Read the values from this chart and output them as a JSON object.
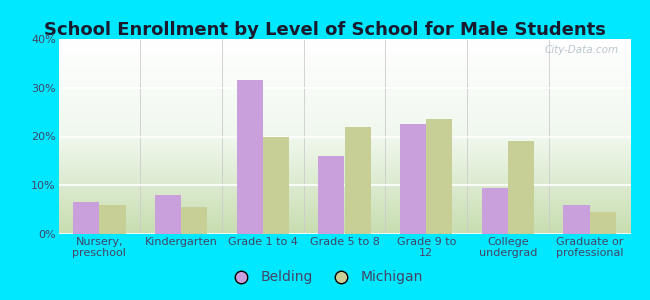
{
  "title": "School Enrollment by Level of School for Male Students",
  "categories": [
    "Nursery,\npreschool",
    "Kindergarten",
    "Grade 1 to 4",
    "Grade 5 to 8",
    "Grade 9 to\n12",
    "College\nundergrad",
    "Graduate or\nprofessional"
  ],
  "belding": [
    6.5,
    8.0,
    31.5,
    16.0,
    22.5,
    9.5,
    6.0
  ],
  "michigan": [
    6.0,
    5.5,
    20.0,
    22.0,
    23.5,
    19.0,
    4.5
  ],
  "belding_color": "#c9a0dc",
  "michigan_color": "#c8cf96",
  "background_outer": "#00e8ff",
  "ylim": [
    0,
    40
  ],
  "yticks": [
    0,
    10,
    20,
    30,
    40
  ],
  "legend_labels": [
    "Belding",
    "Michigan"
  ],
  "title_fontsize": 13,
  "tick_fontsize": 8,
  "legend_fontsize": 10,
  "watermark": "City-Data.com",
  "bar_width": 0.32
}
